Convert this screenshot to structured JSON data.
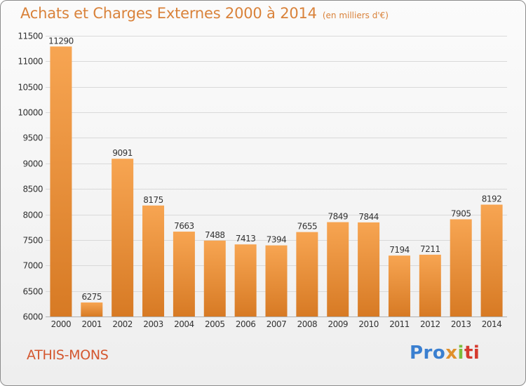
{
  "header": {
    "title": "Achats et Charges Externes 2000 à 2014",
    "subtitle": "(en milliers d'€)"
  },
  "footer": {
    "city": "ATHIS-MONS",
    "logo_parts": [
      "Pro",
      "x",
      "i",
      "ti"
    ]
  },
  "colors": {
    "bar_top": "#f7a552",
    "bar_bottom": "#d77a24",
    "title": "#d9823a",
    "city": "#d4572f",
    "grid": "#d9d9d9",
    "axis_text": "#333333"
  },
  "chart_data": {
    "type": "bar",
    "categories": [
      "2000",
      "2001",
      "2002",
      "2003",
      "2004",
      "2005",
      "2006",
      "2007",
      "2008",
      "2009",
      "2010",
      "2011",
      "2012",
      "2013",
      "2014"
    ],
    "values": [
      11290,
      6275,
      9091,
      8175,
      7663,
      7488,
      7413,
      7394,
      7655,
      7849,
      7844,
      7194,
      7211,
      7905,
      8192
    ],
    "ylim": [
      6000,
      11500
    ],
    "yticks": [
      6000,
      6500,
      7000,
      7500,
      8000,
      8500,
      9000,
      9500,
      10000,
      10500,
      11000,
      11500
    ],
    "grid": true,
    "data_labels": true
  }
}
